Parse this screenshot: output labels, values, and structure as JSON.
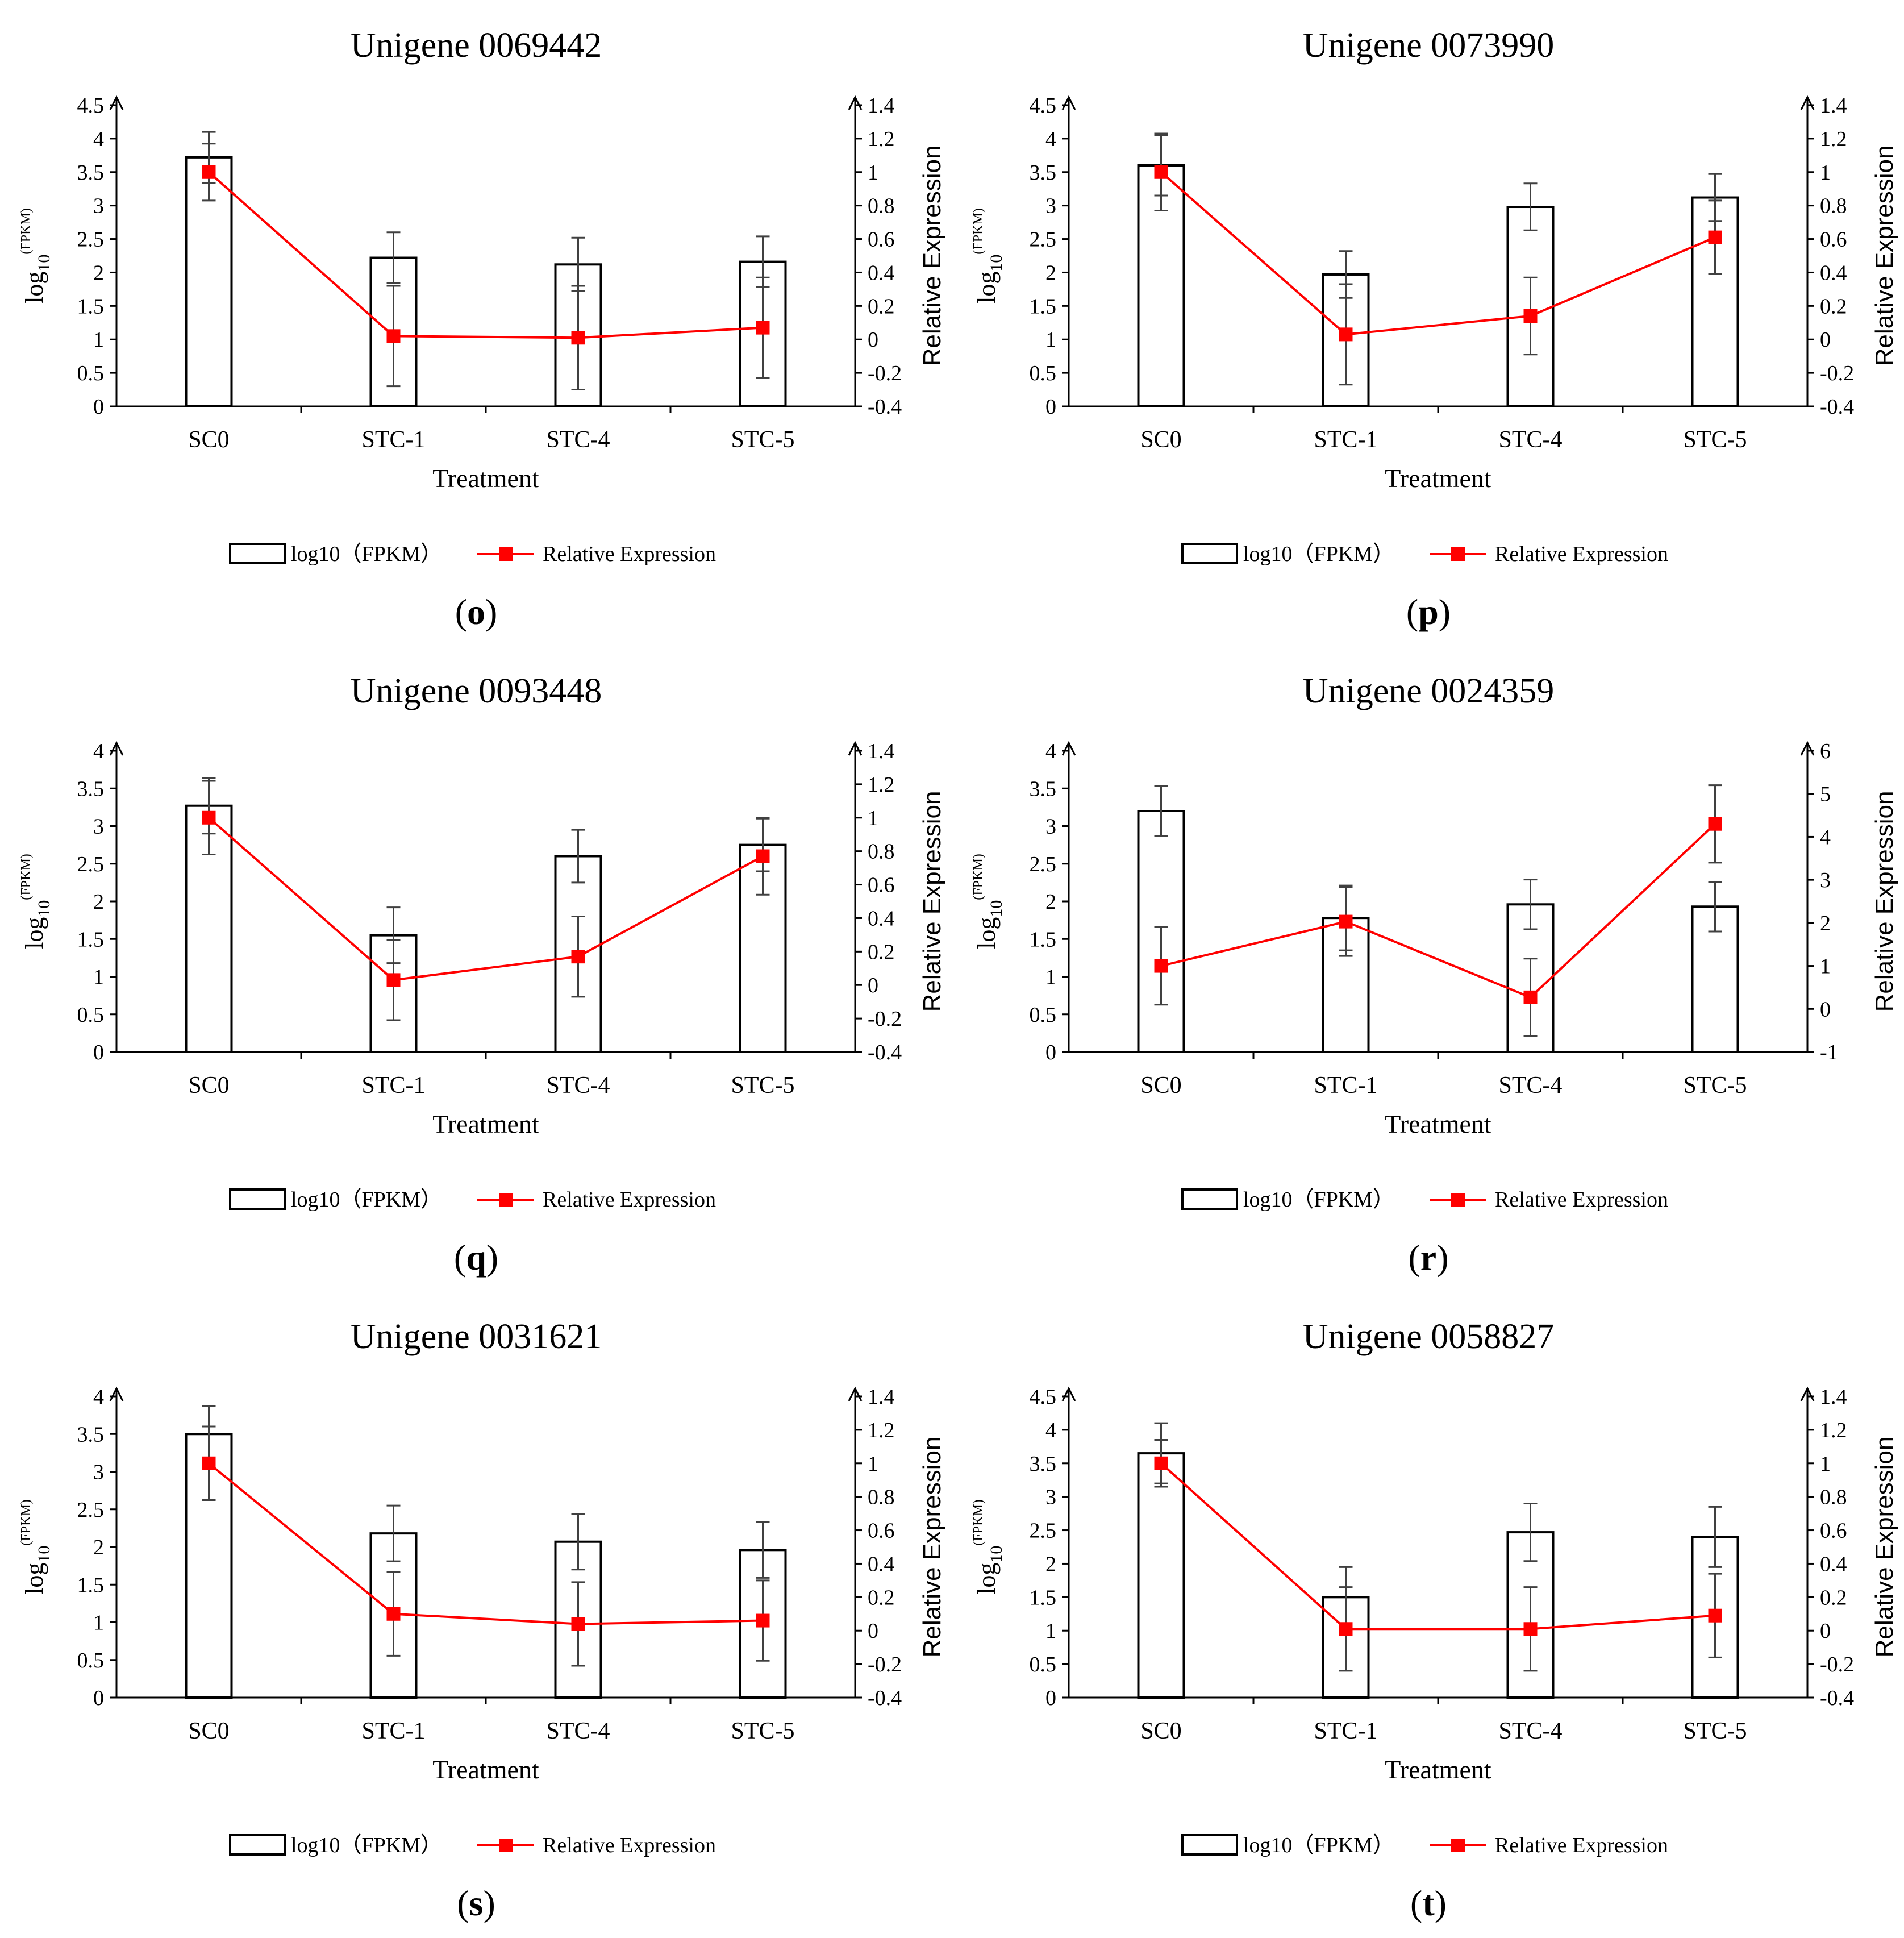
{
  "figure": {
    "label_format": "(X)"
  },
  "colors": {
    "line": "#ff0000",
    "marker": "#ff0000",
    "bar_stroke": "#000000",
    "axis": "#000000",
    "error": "#404040"
  },
  "chart_data": [
    {
      "panel": "o",
      "type": "bar",
      "title": "Unigene 0069442",
      "xlabel": "Treatment",
      "ylabel": "log10(FPKM)",
      "ylabel_base": "log",
      "ylabel_sub": "10",
      "ylabel_sup": "(FPKM)",
      "y2label": "Relative Expression",
      "categories": [
        "SC0",
        "STC-1",
        "STC-4",
        "STC-5"
      ],
      "ylim": [
        0,
        4.5
      ],
      "y_ticks": [
        "0",
        "0.5",
        "1",
        "1.5",
        "2",
        "2.5",
        "3",
        "3.5",
        "4",
        "4.5"
      ],
      "y2lim": [
        -0.4,
        1.4
      ],
      "y2_ticks": [
        "-0.4",
        "-0.2",
        "0",
        "0.2",
        "0.4",
        "0.6",
        "0.8",
        "1",
        "1.2",
        "1.4"
      ],
      "legend": [
        "log10（FPKM）",
        "Relative Expression"
      ],
      "series": [
        {
          "name": "log10（FPKM）",
          "kind": "bar",
          "axis": "left",
          "values": [
            3.72,
            2.22,
            2.12,
            2.16
          ],
          "errors": [
            0.38,
            0.38,
            0.4,
            0.38
          ]
        },
        {
          "name": "Relative Expression",
          "kind": "line",
          "axis": "right",
          "values": [
            1.0,
            0.02,
            0.01,
            0.07
          ],
          "errors": [
            0.17,
            0.3,
            0.31,
            0.3
          ]
        }
      ]
    },
    {
      "panel": "p",
      "type": "bar",
      "title": "Unigene 0073990",
      "xlabel": "Treatment",
      "ylabel": "log10(FPKM)",
      "ylabel_base": "log",
      "ylabel_sub": "10",
      "ylabel_sup": "(FPKM)",
      "y2label": "Relative Expression",
      "categories": [
        "SC0",
        "STC-1",
        "STC-4",
        "STC-5"
      ],
      "ylim": [
        0,
        4.5
      ],
      "y_ticks": [
        "0",
        "0.5",
        "1",
        "1.5",
        "2",
        "2.5",
        "3",
        "3.5",
        "4",
        "4.5"
      ],
      "y2lim": [
        -0.4,
        1.4
      ],
      "y2_ticks": [
        "-0.4",
        "-0.2",
        "0",
        "0.2",
        "0.4",
        "0.6",
        "0.8",
        "1",
        "1.2",
        "1.4"
      ],
      "legend": [
        "log10（FPKM）",
        "Relative Expression"
      ],
      "series": [
        {
          "name": "log10（FPKM）",
          "kind": "bar",
          "axis": "left",
          "values": [
            3.6,
            1.97,
            2.98,
            3.12
          ],
          "errors": [
            0.45,
            0.35,
            0.35,
            0.35
          ]
        },
        {
          "name": "Relative Expression",
          "kind": "line",
          "axis": "right",
          "values": [
            1.0,
            0.03,
            0.14,
            0.61
          ],
          "errors": [
            0.23,
            0.3,
            0.23,
            0.22
          ]
        }
      ]
    },
    {
      "panel": "q",
      "type": "bar",
      "title": "Unigene 0093448",
      "xlabel": "Treatment",
      "ylabel": "log10(FPKM)",
      "ylabel_base": "log",
      "ylabel_sub": "10",
      "ylabel_sup": "(FPKM)",
      "y2label": "Relative Expression",
      "categories": [
        "SC0",
        "STC-1",
        "STC-4",
        "STC-5"
      ],
      "ylim": [
        0,
        4
      ],
      "y_ticks": [
        "0",
        "0.5",
        "1",
        "1.5",
        "2",
        "2.5",
        "3",
        "3.5",
        "4"
      ],
      "y2lim": [
        -0.4,
        1.4
      ],
      "y2_ticks": [
        "-0.4",
        "-0.2",
        "0",
        "0.2",
        "0.4",
        "0.6",
        "0.8",
        "1",
        "1.2",
        "1.4"
      ],
      "legend": [
        "log10（FPKM）",
        "Relative Expression"
      ],
      "series": [
        {
          "name": "log10（FPKM）",
          "kind": "bar",
          "axis": "left",
          "values": [
            3.27,
            1.55,
            2.6,
            2.75
          ],
          "errors": [
            0.37,
            0.37,
            0.35,
            0.35
          ]
        },
        {
          "name": "Relative Expression",
          "kind": "line",
          "axis": "right",
          "values": [
            1.0,
            0.03,
            0.17,
            0.77
          ],
          "errors": [
            0.22,
            0.24,
            0.24,
            0.23
          ]
        }
      ]
    },
    {
      "panel": "r",
      "type": "bar",
      "title": "Unigene 0024359",
      "xlabel": "Treatment",
      "ylabel": "log10(FPKM)",
      "ylabel_base": "log",
      "ylabel_sub": "10",
      "ylabel_sup": "(FPKM)",
      "y2label": "Relative Expression",
      "categories": [
        "SC0",
        "STC-1",
        "STC-4",
        "STC-5"
      ],
      "ylim": [
        0,
        4
      ],
      "y_ticks": [
        "0",
        "0.5",
        "1",
        "1.5",
        "2",
        "2.5",
        "3",
        "3.5",
        "4"
      ],
      "y2lim": [
        -1,
        6
      ],
      "y2_ticks": [
        "-1",
        "0",
        "1",
        "2",
        "3",
        "4",
        "5",
        "6"
      ],
      "legend": [
        "log10（FPKM）",
        "Relative Expression"
      ],
      "series": [
        {
          "name": "log10（FPKM）",
          "kind": "bar",
          "axis": "left",
          "values": [
            3.2,
            1.78,
            1.96,
            1.93
          ],
          "errors": [
            0.33,
            0.43,
            0.33,
            0.33
          ]
        },
        {
          "name": "Relative Expression",
          "kind": "line",
          "axis": "right",
          "values": [
            1.0,
            2.03,
            0.27,
            4.3
          ],
          "errors": [
            0.9,
            0.8,
            0.9,
            0.9
          ]
        }
      ]
    },
    {
      "panel": "s",
      "type": "bar",
      "title": "Unigene 0031621",
      "xlabel": "Treatment",
      "ylabel": "log10(FPKM)",
      "ylabel_base": "log",
      "ylabel_sub": "10",
      "ylabel_sup": "(FPKM)",
      "y2label": "Relative Expression",
      "categories": [
        "SC0",
        "STC-1",
        "STC-4",
        "STC-5"
      ],
      "ylim": [
        0,
        4
      ],
      "y_ticks": [
        "0",
        "0.5",
        "1",
        "1.5",
        "2",
        "2.5",
        "3",
        "3.5",
        "4"
      ],
      "y2lim": [
        -0.4,
        1.4
      ],
      "y2_ticks": [
        "-0.4",
        "-0.2",
        "0",
        "0.2",
        "0.4",
        "0.6",
        "0.8",
        "1",
        "1.2",
        "1.4"
      ],
      "legend": [
        "log10（FPKM）",
        "Relative Expression"
      ],
      "series": [
        {
          "name": "log10（FPKM）",
          "kind": "bar",
          "axis": "left",
          "values": [
            3.5,
            2.18,
            2.07,
            1.96
          ],
          "errors": [
            0.37,
            0.37,
            0.37,
            0.37
          ]
        },
        {
          "name": "Relative Expression",
          "kind": "line",
          "axis": "right",
          "values": [
            1.0,
            0.1,
            0.04,
            0.06
          ],
          "errors": [
            0.22,
            0.25,
            0.25,
            0.24
          ]
        }
      ]
    },
    {
      "panel": "t",
      "type": "bar",
      "title": "Unigene 0058827",
      "xlabel": "Treatment",
      "ylabel": "log10(FPKM)",
      "ylabel_base": "log",
      "ylabel_sub": "10",
      "ylabel_sup": "(FPKM)",
      "y2label": "Relative Expression",
      "categories": [
        "SC0",
        "STC-1",
        "STC-4",
        "STC-5"
      ],
      "ylim": [
        0,
        4.5
      ],
      "y_ticks": [
        "0",
        "0.5",
        "1",
        "1.5",
        "2",
        "2.5",
        "3",
        "3.5",
        "4",
        "4.5"
      ],
      "y2lim": [
        -0.4,
        1.4
      ],
      "y2_ticks": [
        "-0.4",
        "-0.2",
        "0",
        "0.2",
        "0.4",
        "0.6",
        "0.8",
        "1",
        "1.2",
        "1.4"
      ],
      "legend": [
        "log10（FPKM）",
        "Relative Expression"
      ],
      "series": [
        {
          "name": "log10（FPKM）",
          "kind": "bar",
          "axis": "left",
          "values": [
            3.65,
            1.5,
            2.47,
            2.4
          ],
          "errors": [
            0.45,
            0.45,
            0.43,
            0.45
          ]
        },
        {
          "name": "Relative Expression",
          "kind": "line",
          "axis": "right",
          "values": [
            1.0,
            0.01,
            0.01,
            0.09
          ],
          "errors": [
            0.14,
            0.25,
            0.25,
            0.25
          ]
        }
      ]
    }
  ]
}
